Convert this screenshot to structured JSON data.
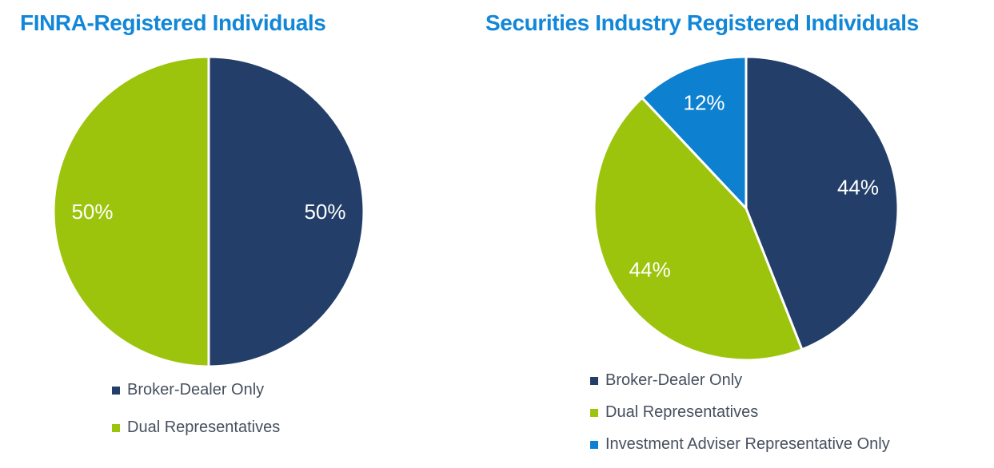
{
  "chart_data": [
    {
      "type": "pie",
      "title": "FINRA-Registered Individuals",
      "labels": [
        "Broker-Dealer Only",
        "Dual Representatives"
      ],
      "values": [
        50,
        50
      ],
      "data_labels": [
        "50%",
        "50%"
      ],
      "colors": [
        "#233F69",
        "#9DC40D"
      ],
      "start_angle_deg": 0,
      "direction": "clockwise",
      "slice_separator_color": "#FFFFFF",
      "legend_position": "bottom-left"
    },
    {
      "type": "pie",
      "title": "Securities Industry Registered Individuals",
      "labels": [
        "Broker-Dealer Only",
        "Dual Representatives",
        "Investment Adviser Representative Only"
      ],
      "values": [
        44,
        44,
        12
      ],
      "data_labels": [
        "44%",
        "44%",
        "12%"
      ],
      "colors": [
        "#233F69",
        "#9DC40D",
        "#0E80D0"
      ],
      "start_angle_deg": 0,
      "direction": "clockwise",
      "slice_separator_color": "#FFFFFF",
      "legend_position": "bottom-left"
    }
  ],
  "styles": {
    "title_color": "#1287D8",
    "legend_text_color": "#475060",
    "data_label_color": "#FFFFFF",
    "background_color": "#FFFFFF"
  }
}
